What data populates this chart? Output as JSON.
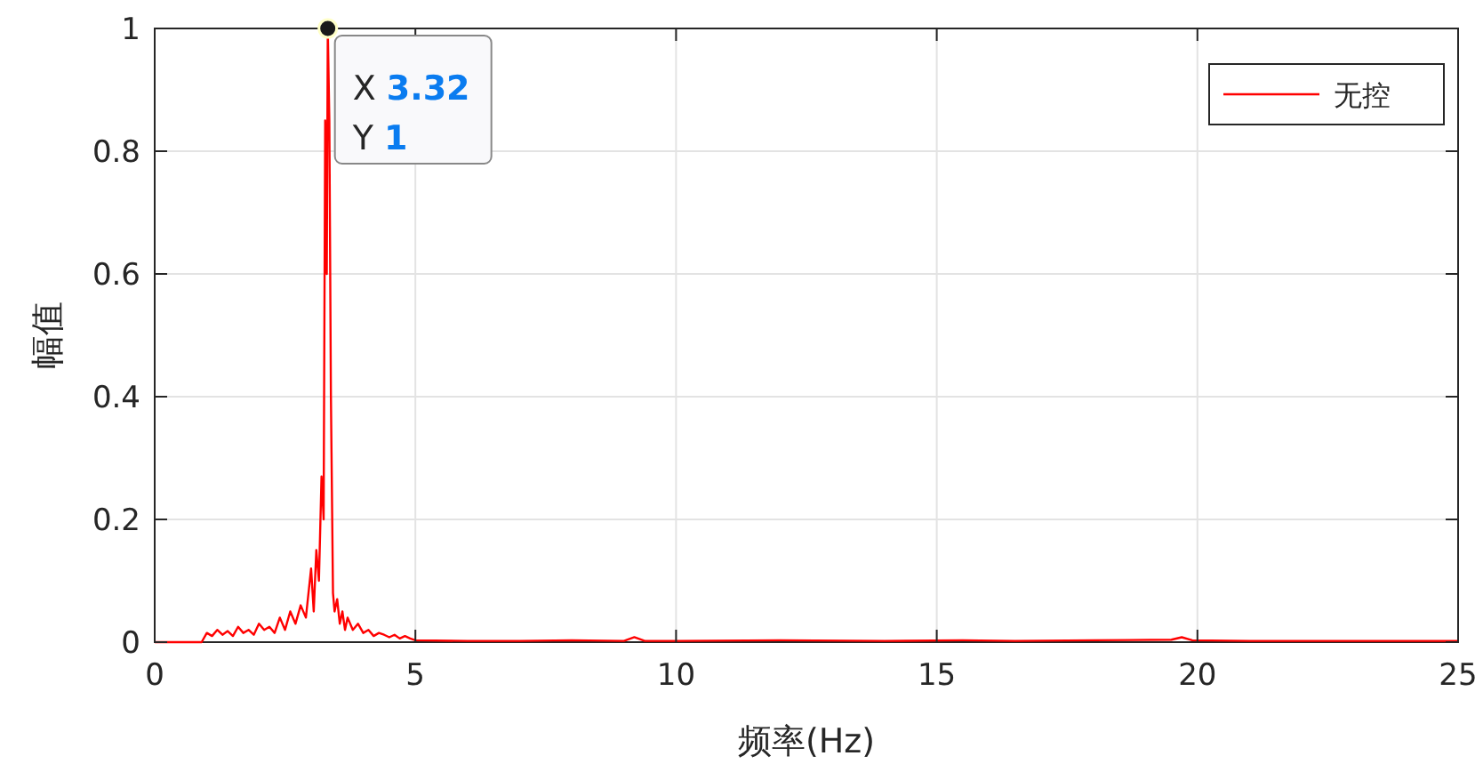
{
  "chart_data": {
    "type": "line",
    "xlabel": "频率(Hz)",
    "ylabel": "幅值",
    "xlim": [
      0,
      25
    ],
    "ylim": [
      0,
      1
    ],
    "xticks": [
      0,
      5,
      10,
      15,
      20,
      25
    ],
    "yticks": [
      0,
      0.2,
      0.4,
      0.6,
      0.8,
      1
    ],
    "grid": true,
    "legend": "top right",
    "marker": "none",
    "line_style": "solid",
    "annotations": [
      {
        "text": "X 3.32\nY 1",
        "x": 3.32,
        "y": 1
      }
    ],
    "series": [
      {
        "name": "无控",
        "color": "#ff0000",
        "x": [
          0,
          0.9,
          1.0,
          1.1,
          1.2,
          1.3,
          1.4,
          1.5,
          1.6,
          1.7,
          1.8,
          1.9,
          2.0,
          2.1,
          2.2,
          2.3,
          2.4,
          2.5,
          2.6,
          2.7,
          2.8,
          2.9,
          3.0,
          3.05,
          3.1,
          3.15,
          3.2,
          3.24,
          3.27,
          3.3,
          3.32,
          3.35,
          3.38,
          3.42,
          3.45,
          3.5,
          3.55,
          3.6,
          3.65,
          3.7,
          3.8,
          3.9,
          4.0,
          4.1,
          4.2,
          4.3,
          4.4,
          4.5,
          4.6,
          4.7,
          4.8,
          4.9,
          5.0,
          6,
          7,
          8,
          9,
          9.2,
          9.4,
          10,
          12,
          14,
          15.5,
          16.5,
          18,
          19.5,
          19.7,
          19.9,
          21,
          23,
          25
        ],
        "values": [
          0,
          0,
          0.015,
          0.01,
          0.02,
          0.012,
          0.018,
          0.01,
          0.025,
          0.015,
          0.02,
          0.012,
          0.03,
          0.02,
          0.025,
          0.015,
          0.04,
          0.02,
          0.05,
          0.03,
          0.06,
          0.04,
          0.12,
          0.05,
          0.15,
          0.1,
          0.27,
          0.2,
          0.85,
          0.6,
          1,
          0.85,
          0.4,
          0.08,
          0.05,
          0.07,
          0.03,
          0.05,
          0.02,
          0.04,
          0.02,
          0.03,
          0.015,
          0.02,
          0.01,
          0.015,
          0.012,
          0.008,
          0.012,
          0.006,
          0.01,
          0.006,
          0.003,
          0.002,
          0.002,
          0.003,
          0.002,
          0.008,
          0.002,
          0.002,
          0.003,
          0.002,
          0.003,
          0.002,
          0.003,
          0.004,
          0.008,
          0.003,
          0.002,
          0.002,
          0.002
        ]
      }
    ]
  }
}
